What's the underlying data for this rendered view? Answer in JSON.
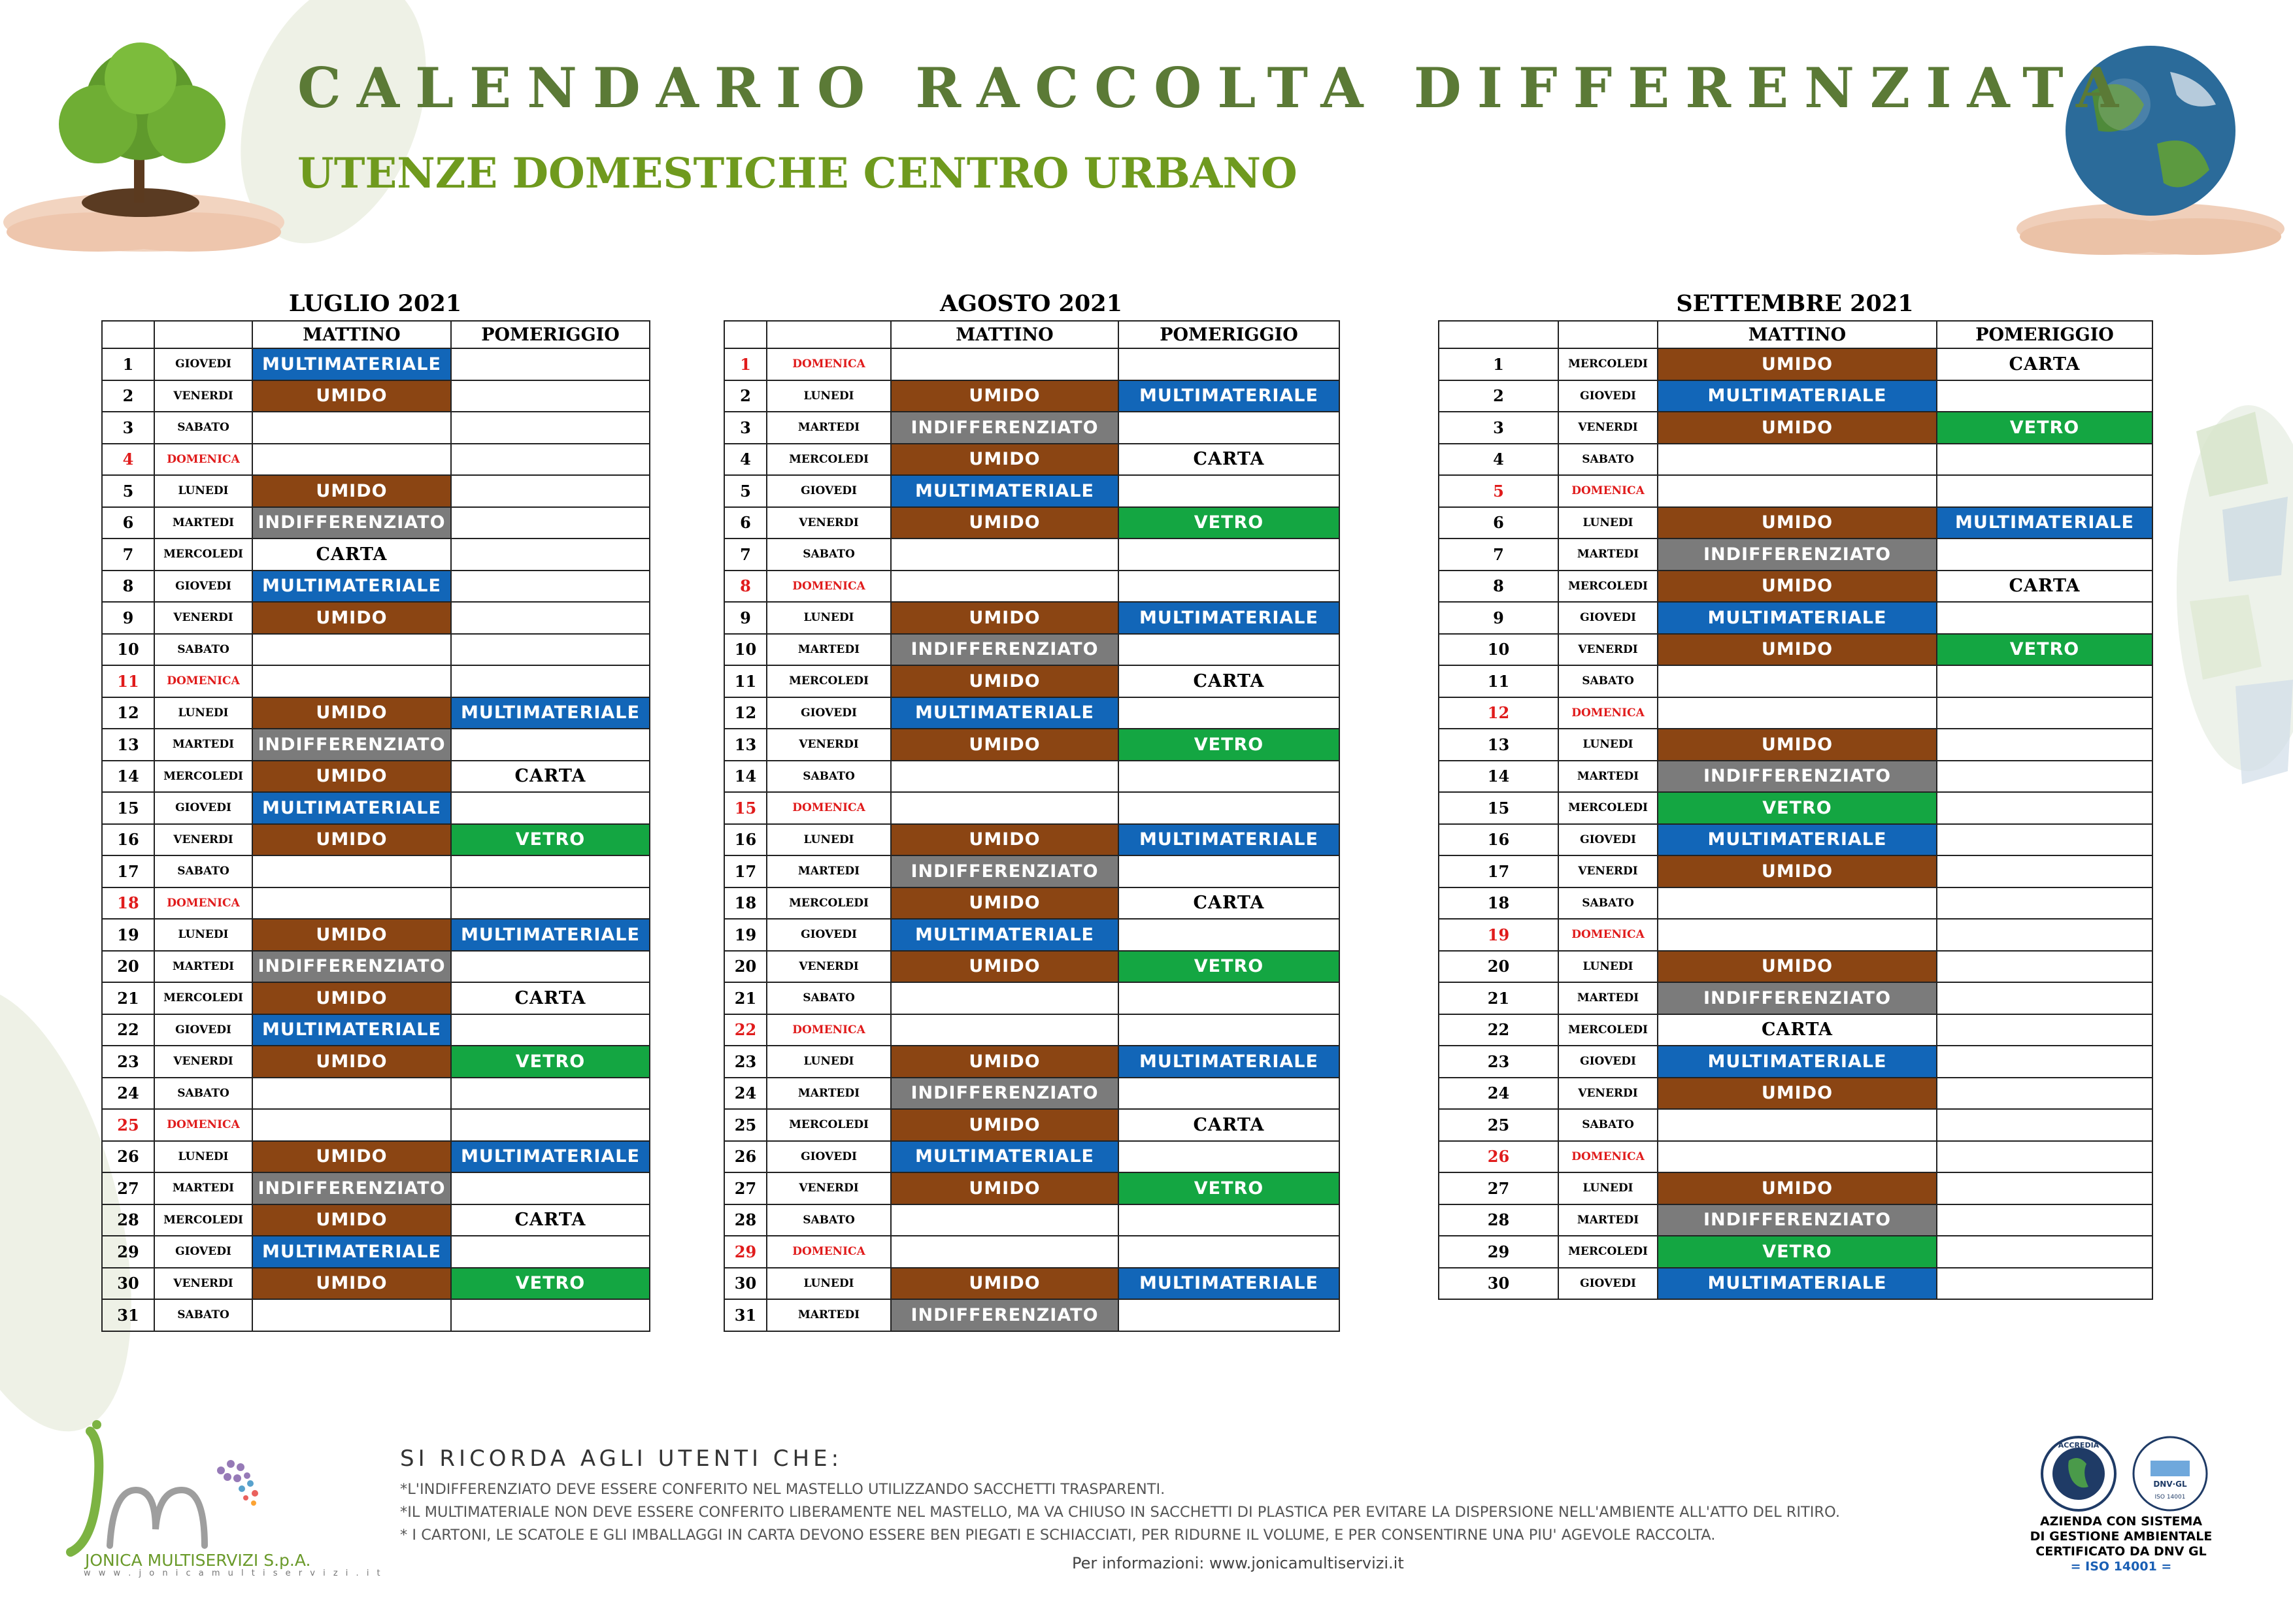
{
  "header": {
    "title": "CALENDARIO RACCOLTA DIFFERENZIATA",
    "subtitle": "UTENZE DOMESTICHE CENTRO URBANO"
  },
  "columns": {
    "morning": "MATTINO",
    "afternoon": "POMERIGGIO"
  },
  "waste_types": {
    "UMIDO": "#8b4513",
    "MULTIMATERIALE": "#1266b8",
    "INDIFFERENZIATO": "#7b7b7b",
    "VETRO": "#14a642",
    "CARTA": "#ffffff"
  },
  "colors": {
    "title_green": "#5b7a36",
    "subtitle_green": "#6f9a1e",
    "sunday_red": "#e01b1b"
  },
  "months": [
    {
      "title": "LUGLIO 2021",
      "days": [
        [
          "1",
          "GIOVEDI",
          "MULTIMATERIALE",
          ""
        ],
        [
          "2",
          "VENERDI",
          "UMIDO",
          ""
        ],
        [
          "3",
          "SABATO",
          "",
          ""
        ],
        [
          "4",
          "DOMENICA",
          "",
          ""
        ],
        [
          "5",
          "LUNEDI",
          "UMIDO",
          ""
        ],
        [
          "6",
          "MARTEDI",
          "INDIFFERENZIATO",
          ""
        ],
        [
          "7",
          "MERCOLEDI",
          "CARTA",
          ""
        ],
        [
          "8",
          "GIOVEDI",
          "MULTIMATERIALE",
          ""
        ],
        [
          "9",
          "VENERDI",
          "UMIDO",
          ""
        ],
        [
          "10",
          "SABATO",
          "",
          ""
        ],
        [
          "11",
          "DOMENICA",
          "",
          ""
        ],
        [
          "12",
          "LUNEDI",
          "UMIDO",
          "MULTIMATERIALE"
        ],
        [
          "13",
          "MARTEDI",
          "INDIFFERENZIATO",
          ""
        ],
        [
          "14",
          "MERCOLEDI",
          "UMIDO",
          "CARTA"
        ],
        [
          "15",
          "GIOVEDI",
          "MULTIMATERIALE",
          ""
        ],
        [
          "16",
          "VENERDI",
          "UMIDO",
          "VETRO"
        ],
        [
          "17",
          "SABATO",
          "",
          ""
        ],
        [
          "18",
          "DOMENICA",
          "",
          ""
        ],
        [
          "19",
          "LUNEDI",
          "UMIDO",
          "MULTIMATERIALE"
        ],
        [
          "20",
          "MARTEDI",
          "INDIFFERENZIATO",
          ""
        ],
        [
          "21",
          "MERCOLEDI",
          "UMIDO",
          "CARTA"
        ],
        [
          "22",
          "GIOVEDI",
          "MULTIMATERIALE",
          ""
        ],
        [
          "23",
          "VENERDI",
          "UMIDO",
          "VETRO"
        ],
        [
          "24",
          "SABATO",
          "",
          ""
        ],
        [
          "25",
          "DOMENICA",
          "",
          ""
        ],
        [
          "26",
          "LUNEDI",
          "UMIDO",
          "MULTIMATERIALE"
        ],
        [
          "27",
          "MARTEDI",
          "INDIFFERENZIATO",
          ""
        ],
        [
          "28",
          "MERCOLEDI",
          "UMIDO",
          "CARTA"
        ],
        [
          "29",
          "GIOVEDI",
          "MULTIMATERIALE",
          ""
        ],
        [
          "30",
          "VENERDI",
          "UMIDO",
          "VETRO"
        ],
        [
          "31",
          "SABATO",
          "",
          ""
        ]
      ]
    },
    {
      "title": "AGOSTO 2021",
      "days": [
        [
          "1",
          "DOMENICA",
          "",
          ""
        ],
        [
          "2",
          "LUNEDI",
          "UMIDO",
          "MULTIMATERIALE"
        ],
        [
          "3",
          "MARTEDI",
          "INDIFFERENZIATO",
          ""
        ],
        [
          "4",
          "MERCOLEDI",
          "UMIDO",
          "CARTA"
        ],
        [
          "5",
          "GIOVEDI",
          "MULTIMATERIALE",
          ""
        ],
        [
          "6",
          "VENERDI",
          "UMIDO",
          "VETRO"
        ],
        [
          "7",
          "SABATO",
          "",
          ""
        ],
        [
          "8",
          "DOMENICA",
          "",
          ""
        ],
        [
          "9",
          "LUNEDI",
          "UMIDO",
          "MULTIMATERIALE"
        ],
        [
          "10",
          "MARTEDI",
          "INDIFFERENZIATO",
          ""
        ],
        [
          "11",
          "MERCOLEDI",
          "UMIDO",
          "CARTA"
        ],
        [
          "12",
          "GIOVEDI",
          "MULTIMATERIALE",
          ""
        ],
        [
          "13",
          "VENERDI",
          "UMIDO",
          "VETRO"
        ],
        [
          "14",
          "SABATO",
          "",
          ""
        ],
        [
          "15",
          "DOMENICA",
          "",
          ""
        ],
        [
          "16",
          "LUNEDI",
          "UMIDO",
          "MULTIMATERIALE"
        ],
        [
          "17",
          "MARTEDI",
          "INDIFFERENZIATO",
          ""
        ],
        [
          "18",
          "MERCOLEDI",
          "UMIDO",
          "CARTA"
        ],
        [
          "19",
          "GIOVEDI",
          "MULTIMATERIALE",
          ""
        ],
        [
          "20",
          "VENERDI",
          "UMIDO",
          "VETRO"
        ],
        [
          "21",
          "SABATO",
          "",
          ""
        ],
        [
          "22",
          "DOMENICA",
          "",
          ""
        ],
        [
          "23",
          "LUNEDI",
          "UMIDO",
          "MULTIMATERIALE"
        ],
        [
          "24",
          "MARTEDI",
          "INDIFFERENZIATO",
          ""
        ],
        [
          "25",
          "MERCOLEDI",
          "UMIDO",
          "CARTA"
        ],
        [
          "26",
          "GIOVEDI",
          "MULTIMATERIALE",
          ""
        ],
        [
          "27",
          "VENERDI",
          "UMIDO",
          "VETRO"
        ],
        [
          "28",
          "SABATO",
          "",
          ""
        ],
        [
          "29",
          "DOMENICA",
          "",
          ""
        ],
        [
          "30",
          "LUNEDI",
          "UMIDO",
          "MULTIMATERIALE"
        ],
        [
          "31",
          "MARTEDI",
          "INDIFFERENZIATO",
          ""
        ]
      ]
    },
    {
      "title": "SETTEMBRE 2021",
      "days": [
        [
          "1",
          "MERCOLEDI",
          "UMIDO",
          "CARTA"
        ],
        [
          "2",
          "GIOVEDI",
          "MULTIMATERIALE",
          ""
        ],
        [
          "3",
          "VENERDI",
          "UMIDO",
          "VETRO"
        ],
        [
          "4",
          "SABATO",
          "",
          ""
        ],
        [
          "5",
          "DOMENICA",
          "",
          ""
        ],
        [
          "6",
          "LUNEDI",
          "UMIDO",
          "MULTIMATERIALE"
        ],
        [
          "7",
          "MARTEDI",
          "INDIFFERENZIATO",
          ""
        ],
        [
          "8",
          "MERCOLEDI",
          "UMIDO",
          "CARTA"
        ],
        [
          "9",
          "GIOVEDI",
          "MULTIMATERIALE",
          ""
        ],
        [
          "10",
          "VENERDI",
          "UMIDO",
          "VETRO"
        ],
        [
          "11",
          "SABATO",
          "",
          ""
        ],
        [
          "12",
          "DOMENICA",
          "",
          ""
        ],
        [
          "13",
          "LUNEDI",
          "UMIDO",
          ""
        ],
        [
          "14",
          "MARTEDI",
          "INDIFFERENZIATO",
          ""
        ],
        [
          "15",
          "MERCOLEDI",
          "VETRO",
          ""
        ],
        [
          "16",
          "GIOVEDI",
          "MULTIMATERIALE",
          ""
        ],
        [
          "17",
          "VENERDI",
          "UMIDO",
          ""
        ],
        [
          "18",
          "SABATO",
          "",
          ""
        ],
        [
          "19",
          "DOMENICA",
          "",
          ""
        ],
        [
          "20",
          "LUNEDI",
          "UMIDO",
          ""
        ],
        [
          "21",
          "MARTEDI",
          "INDIFFERENZIATO",
          ""
        ],
        [
          "22",
          "MERCOLEDI",
          "CARTA",
          ""
        ],
        [
          "23",
          "GIOVEDI",
          "MULTIMATERIALE",
          ""
        ],
        [
          "24",
          "VENERDI",
          "UMIDO",
          ""
        ],
        [
          "25",
          "SABATO",
          "",
          ""
        ],
        [
          "26",
          "DOMENICA",
          "",
          ""
        ],
        [
          "27",
          "LUNEDI",
          "UMIDO",
          ""
        ],
        [
          "28",
          "MARTEDI",
          "INDIFFERENZIATO",
          ""
        ],
        [
          "29",
          "MERCOLEDI",
          "VETRO",
          ""
        ],
        [
          "30",
          "GIOVEDI",
          "MULTIMATERIALE",
          ""
        ]
      ]
    }
  ],
  "notes": {
    "heading": "SI RICORDA AGLI UTENTI CHE:",
    "lines": [
      "*L'INDIFFERENZIATO DEVE ESSERE CONFERITO NEL MASTELLO UTILIZZANDO SACCHETTI TRASPARENTI.",
      "*IL MULTIMATERIALE NON DEVE ESSERE CONFERITO LIBERAMENTE NEL MASTELLO, MA VA CHIUSO IN SACCHETTI DI PLASTICA PER EVITARE LA DISPERSIONE NELL'AMBIENTE ALL'ATTO DEL RITIRO.",
      "* I CARTONI, LE SCATOLE E GLI IMBALLAGGI IN CARTA DEVONO ESSERE BEN PIEGATI E SCHIACCIATI, PER RIDURNE IL VOLUME,  E PER CONSENTIRNE UNA PIU' AGEVOLE RACCOLTA."
    ],
    "info": "Per informazioni: www.jonicamultiservizi.it"
  },
  "logo": {
    "name": "JONICA MULTISERVIZI S.p.A.",
    "url": "w w w . j o n i c a m u l t i s e r v i z i . i t"
  },
  "certification": {
    "accredia": "ACCREDIA",
    "dnv": "DNV·GL",
    "iso_badge": "ISO 14001",
    "line1": "AZIENDA CON SISTEMA",
    "line2": "DI GESTIONE AMBIENTALE",
    "line3": "CERTIFICATO DA DNV GL",
    "line4": "= ISO 14001 ="
  }
}
